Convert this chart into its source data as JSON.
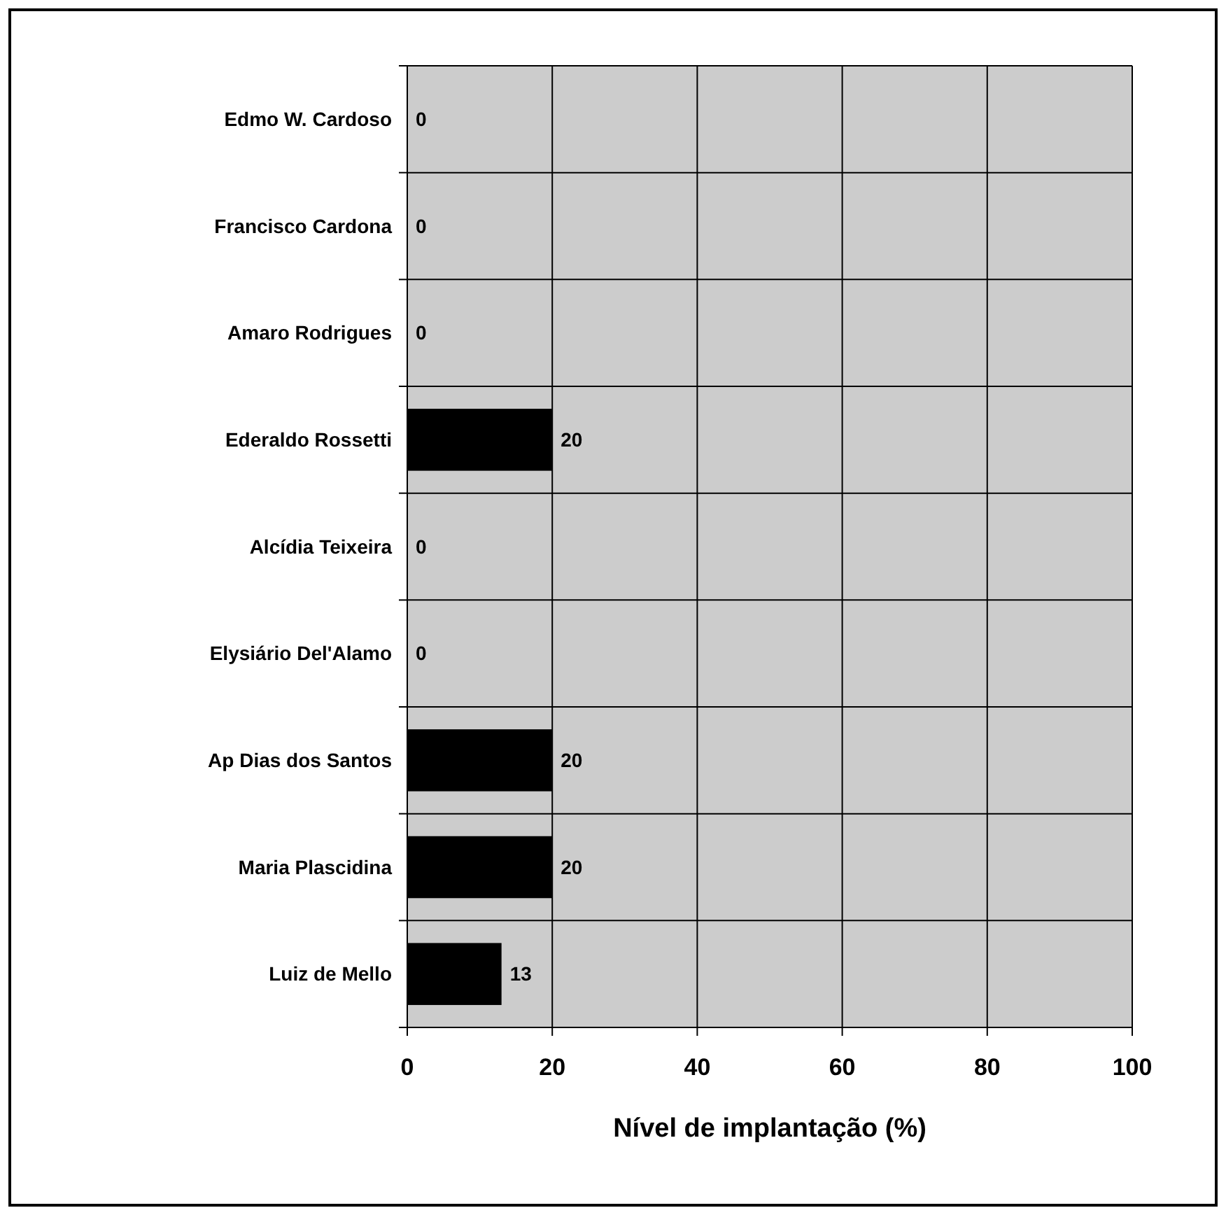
{
  "chart_data": {
    "type": "bar",
    "orientation": "horizontal",
    "xlabel": "Nível de implantação (%)",
    "categories": [
      "Edmo W. Cardoso",
      "Francisco Cardona",
      "Amaro Rodrigues",
      "Ederaldo Rossetti",
      "Alcídia Teixeira",
      "Elysiário Del'Alamo",
      "Ap Dias dos Santos",
      "Maria Plascidina",
      "Luiz de Mello"
    ],
    "values": [
      0,
      0,
      0,
      20,
      0,
      0,
      20,
      20,
      13
    ],
    "color": "#000000",
    "xlim": [
      0,
      100
    ],
    "xticks": [
      0,
      20,
      40,
      60,
      80,
      100
    ],
    "grid": true,
    "data_labels": true
  }
}
